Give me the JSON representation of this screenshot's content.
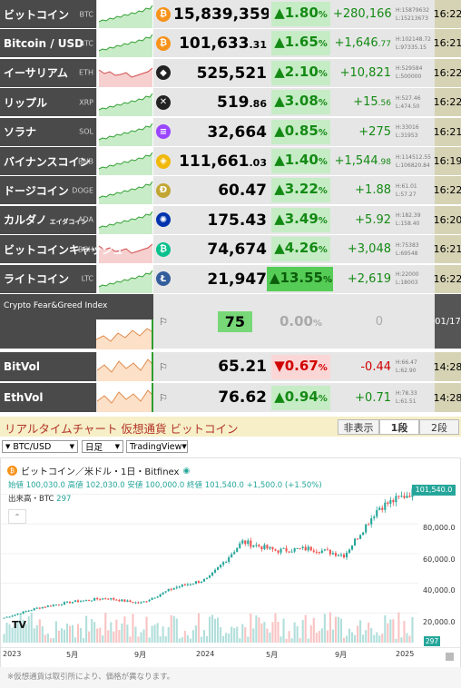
{
  "rows": [
    {
      "name": "ビットコイン",
      "ticker": "BTC",
      "icon": "bitcoin-icon",
      "icon_glyph": "₿",
      "icon_color": "#f7931a",
      "price_int": "15,839,359",
      "price_dec": "",
      "pct": "1.80",
      "dir": "up",
      "hot": false,
      "chg_int": "+280,166",
      "chg_dec": "",
      "high": "H:15879632",
      "low": "L:15213673",
      "time": "16:22"
    },
    {
      "name": "Bitcoin / USD",
      "ticker": "BTC",
      "icon": "bitcoin-icon",
      "icon_glyph": "₿",
      "icon_color": "#f7931a",
      "price_int": "101,633",
      "price_dec": ".31",
      "pct": "1.65",
      "dir": "up",
      "hot": false,
      "chg_int": "+1,646",
      "chg_dec": ".77",
      "high": "H:102148.72",
      "low": "L:97335.15",
      "time": "16:21"
    },
    {
      "name": "イーサリアム",
      "ticker": "ETH",
      "icon": "ethereum-icon",
      "icon_glyph": "◆",
      "icon_color": "#222222",
      "price_int": "525,521",
      "price_dec": "",
      "pct": "2.10",
      "dir": "up",
      "hot": false,
      "chg_int": "+10,821",
      "chg_dec": "",
      "high": "H:529584",
      "low": "L:500000",
      "time": "16:22"
    },
    {
      "name": "リップル",
      "ticker": "XRP",
      "icon": "ripple-icon",
      "icon_glyph": "✕",
      "icon_color": "#222222",
      "price_int": "519",
      "price_dec": ".86",
      "pct": "3.08",
      "dir": "up",
      "hot": false,
      "chg_int": "+15",
      "chg_dec": ".56",
      "high": "H:527.46",
      "low": "L:474.50",
      "time": "16:22"
    },
    {
      "name": "ソラナ",
      "ticker": "SOL",
      "icon": "solana-icon",
      "icon_glyph": "≡",
      "icon_color": "#9945ff",
      "price_int": "32,664",
      "price_dec": "",
      "pct": "0.85",
      "dir": "up",
      "hot": false,
      "chg_int": "+275",
      "chg_dec": "",
      "high": "H:33016",
      "low": "L:31953",
      "time": "16:21"
    },
    {
      "name": "バイナンスコイン",
      "ticker": "BNB",
      "icon": "binance-icon",
      "icon_glyph": "◈",
      "icon_color": "#f0b90b",
      "price_int": "111,661",
      "price_dec": ".03",
      "pct": "1.40",
      "dir": "up",
      "hot": false,
      "chg_int": "+1,544",
      "chg_dec": ".98",
      "high": "H:114512.55",
      "low": "L:106820.84",
      "time": "16:19"
    },
    {
      "name": "ドージコイン",
      "ticker": "DOGE",
      "icon": "dogecoin-icon",
      "icon_glyph": "Ð",
      "icon_color": "#c2a633",
      "price_int": "60.47",
      "price_dec": "",
      "pct": "3.22",
      "dir": "up",
      "hot": false,
      "chg_int": "+1.88",
      "chg_dec": "",
      "high": "H:61.01",
      "low": "L:57.27",
      "time": "16:22"
    },
    {
      "name": "カルダノ",
      "subname": "エイダコイン",
      "ticker": "ADA",
      "icon": "cardano-icon",
      "icon_glyph": "✺",
      "icon_color": "#0033ad",
      "price_int": "175.43",
      "price_dec": "",
      "pct": "3.49",
      "dir": "up",
      "hot": false,
      "chg_int": "+5.92",
      "chg_dec": "",
      "high": "H:182.39",
      "low": "L:158.40",
      "time": "16:20"
    },
    {
      "name": "ビットコインキャッシュ",
      "ticker": "BCH",
      "icon": "bitcoin-cash-icon",
      "icon_glyph": "₿",
      "icon_color": "#0ac18e",
      "price_int": "74,674",
      "price_dec": "",
      "pct": "4.26",
      "dir": "up",
      "hot": false,
      "chg_int": "+3,048",
      "chg_dec": "",
      "high": "H:75383",
      "low": "L:69548",
      "time": "16:21"
    },
    {
      "name": "ライトコイン",
      "ticker": "LTC",
      "icon": "litecoin-icon",
      "icon_glyph": "Ł",
      "icon_color": "#345d9d",
      "price_int": "21,947",
      "price_dec": "",
      "pct": "13.55",
      "dir": "up",
      "hot": true,
      "chg_int": "+2,619",
      "chg_dec": "",
      "high": "H:22000",
      "low": "L:18003",
      "time": "16:22"
    }
  ],
  "fear_greed": {
    "label": "Crypto Fear&Greed Index",
    "value": "75",
    "pct": "0.00",
    "chg": "0",
    "date": "01/17"
  },
  "vol_rows": [
    {
      "name": "BitVol",
      "price": "65.21",
      "pct": "0.67",
      "dir": "down",
      "chg": "-0.44",
      "high": "H:66.47",
      "low": "L:62.90",
      "time": "14:28"
    },
    {
      "name": "EthVol",
      "price": "76.62",
      "pct": "0.94",
      "dir": "up",
      "chg": "+0.71",
      "high": "H:78.33",
      "low": "L:61.51",
      "time": "14:28"
    }
  ],
  "pct_unit": "%",
  "realtime": {
    "title": "リアルタイムチャート 仮想通貨 ビットコイン",
    "tabs": [
      "非表示",
      "1段",
      "2段"
    ],
    "active_tab": 1,
    "pair_select": "BTC/USD",
    "period_select": "日足",
    "source_select": "TradingView"
  },
  "tv": {
    "symbol": "ビットコイン／米ドル・1日・Bitfinex",
    "ohlc": "始値 100,030.0  高値 102,030.0  安値 100,000.0  終値 101,540.0  +1,500.0 (+1.50%)",
    "volume": "出来高・BTC",
    "volume_value": "297",
    "last_price": "101,540.0",
    "volume_tag": "297",
    "y_ticks": [
      "80,000.0",
      "60,000.0",
      "40,000.0",
      "20,000.0"
    ],
    "x_ticks": [
      "2023",
      "5月",
      "9月",
      "2024",
      "5月",
      "9月",
      "2025"
    ],
    "logo": "TV"
  },
  "footer": "※仮想通貨は取引所により、価格が異なります。",
  "colors": {
    "up": "#148a14",
    "down": "#d00000",
    "name_bg": "#4a4a4a",
    "time_bg": "#d6d3b5",
    "accent": "#26a69a"
  },
  "chart_data": {
    "type": "line",
    "x": [
      "2023-01",
      "2023-03",
      "2023-05",
      "2023-07",
      "2023-09",
      "2023-11",
      "2024-01",
      "2024-03",
      "2024-05",
      "2024-07",
      "2024-09",
      "2024-11",
      "2025-01"
    ],
    "series": [
      {
        "values": [
          16800,
          23500,
          27500,
          30000,
          26500,
          37000,
          43000,
          68000,
          62000,
          63500,
          59000,
          91000,
          101540
        ]
      }
    ],
    "ylim": [
      0,
      112000
    ]
  }
}
